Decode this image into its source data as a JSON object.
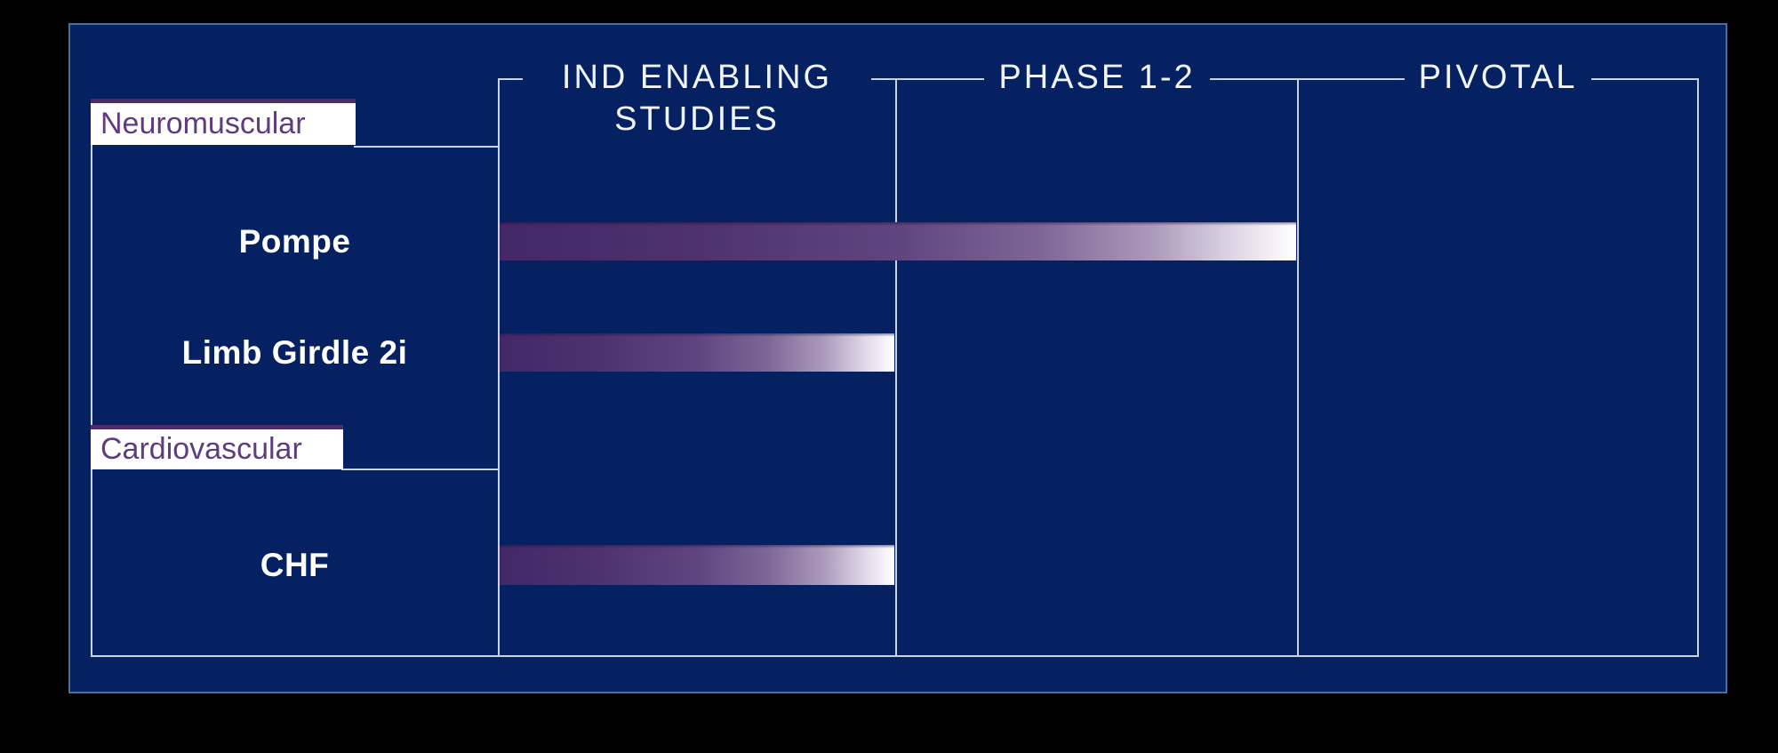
{
  "chart_data": {
    "type": "bar",
    "subtype": "clinical-pipeline-gantt",
    "title": "",
    "orientation": "horizontal",
    "stage_columns": [
      "IND ENABLING STUDIES",
      "PHASE 1-2",
      "PIVOTAL"
    ],
    "groups": [
      {
        "label": "Neuromuscular",
        "programs": [
          {
            "name": "Pompe",
            "stage_extent": 2,
            "furthest_stage": "PHASE 1-2"
          },
          {
            "name": "Limb Girdle 2i",
            "stage_extent": 1,
            "furthest_stage": "IND ENABLING STUDIES"
          }
        ]
      },
      {
        "label": "Cardiovascular",
        "programs": [
          {
            "name": "CHF",
            "stage_extent": 1,
            "furthest_stage": "IND ENABLING STUDIES"
          }
        ]
      }
    ],
    "x_axis": {
      "unit": "development stage",
      "range": [
        0,
        3
      ]
    },
    "legend_position": "none",
    "grid": "column-dividers",
    "colors": {
      "page_background": "#000000",
      "panel_background": "#062161",
      "panel_border": "#4a6e9e",
      "grid_line": "#ccd3e0",
      "bar_gradient_start": "#432868",
      "bar_gradient_end": "#ffffff",
      "category_tab_background": "#ffffff",
      "category_tab_text": "#5f3c80",
      "category_tab_accent": "#4f2c67",
      "stage_header_text": "#f0f3f7",
      "program_label_text": "#ffffff"
    }
  }
}
